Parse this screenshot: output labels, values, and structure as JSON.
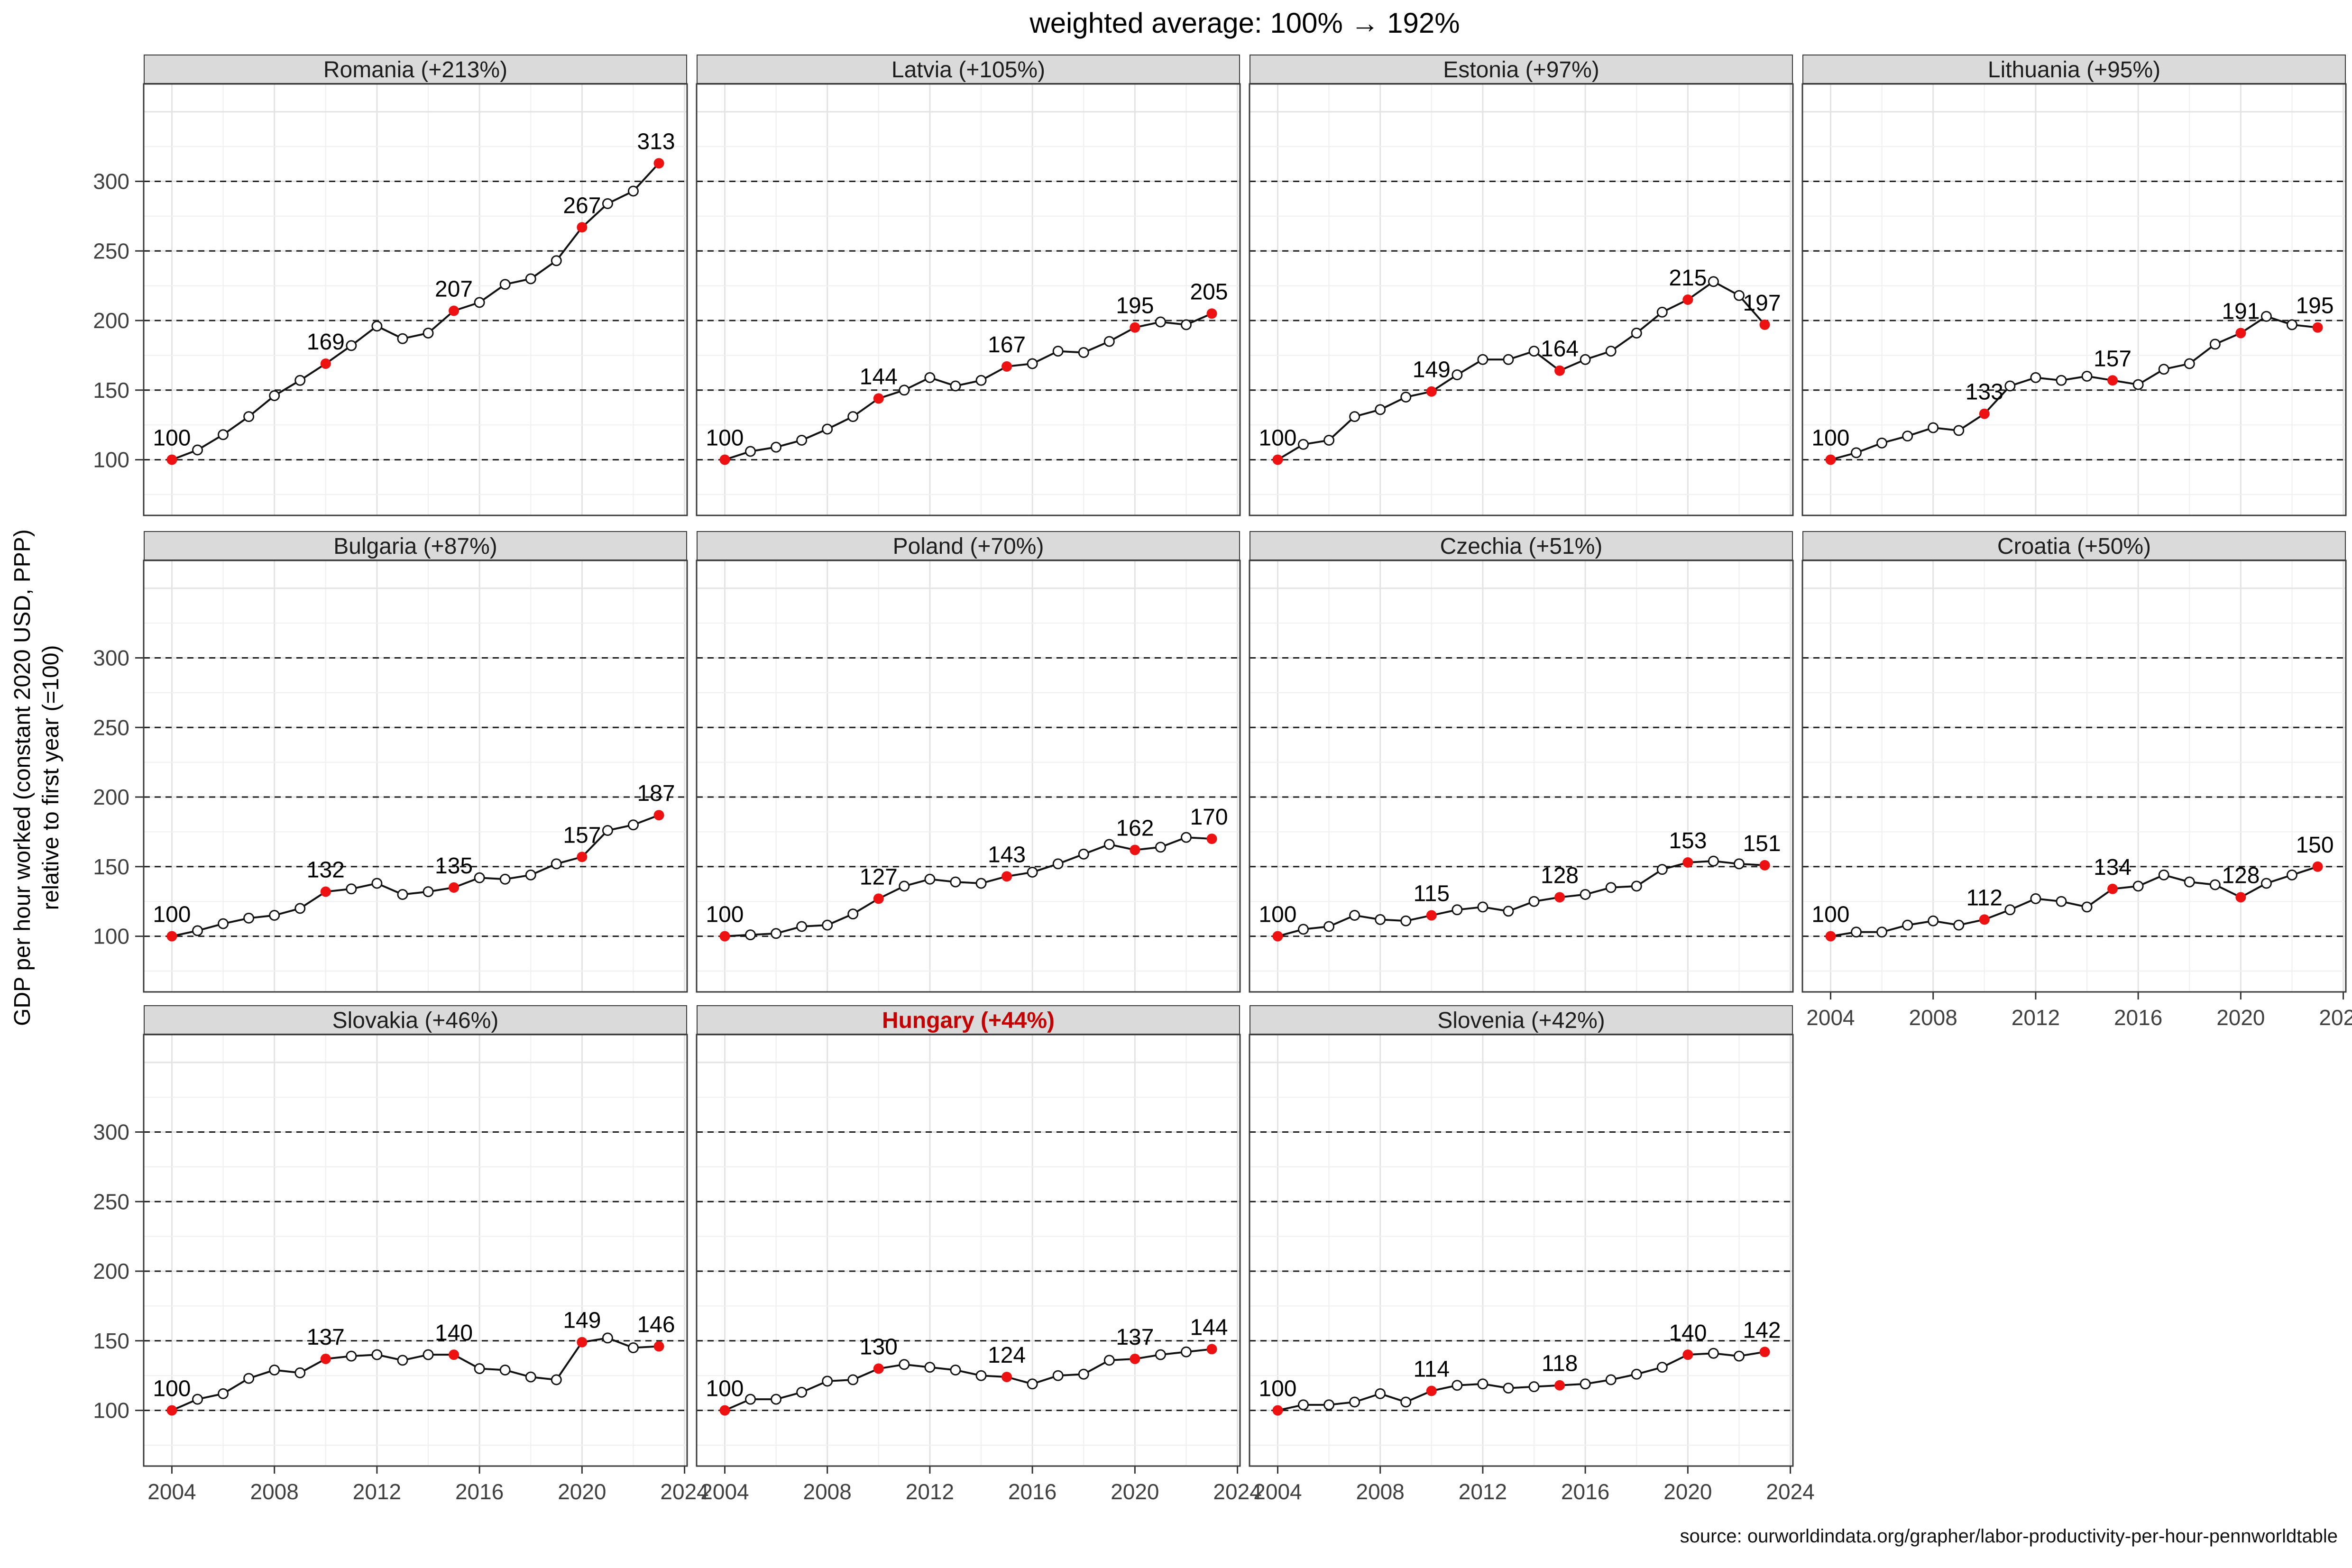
{
  "title": "weighted average: 100% → 192%",
  "y_axis": {
    "line1": "GDP per hour worked (constant 2020 USD, PPP)",
    "line2": "relative to first year (=100)"
  },
  "source": "source: ourworldindata.org/grapher/labor-productivity-per-hour-pennworldtable",
  "colors": {
    "highlight_red": "#ee1111",
    "hungary_title_red": "#c40000",
    "strip_bg": "#dadada",
    "grid_major": "#e3e3e3",
    "grid_minor": "#f0f0f0",
    "dash_line": "#1a1a1a",
    "data_line": "#111111",
    "border": "#3a3a3a",
    "tick_text": "#404040"
  },
  "chart_data": {
    "type": "line",
    "title": "weighted average: 100% → 192%",
    "ylabel": "GDP per hour worked (constant 2020 USD, PPP) relative to first year (=100)",
    "x": [
      2004,
      2005,
      2006,
      2007,
      2008,
      2009,
      2010,
      2011,
      2012,
      2013,
      2014,
      2015,
      2016,
      2017,
      2018,
      2019,
      2020,
      2021,
      2022,
      2023
    ],
    "x_ticks": [
      2004,
      2008,
      2012,
      2016,
      2020,
      2024
    ],
    "y_ticks": [
      100,
      150,
      200,
      250,
      300
    ],
    "dashed_gridlines": [
      100,
      150,
      200,
      250,
      300
    ],
    "label_years": [
      2004,
      2010,
      2015,
      2020,
      2023
    ],
    "ylim": [
      60,
      370
    ],
    "xlim": [
      2002.9,
      2024.1
    ],
    "facets": [
      {
        "label": "Romania (+213%)",
        "country": "Romania",
        "change_pct": "+213%",
        "highlight": false,
        "values": [
          100,
          107,
          118,
          131,
          146,
          157,
          169,
          182,
          196,
          187,
          191,
          207,
          213,
          226,
          230,
          243,
          267,
          284,
          293,
          313
        ],
        "labeled_values": [
          100,
          169,
          207,
          267,
          313
        ]
      },
      {
        "label": "Latvia (+105%)",
        "country": "Latvia",
        "change_pct": "+105%",
        "highlight": false,
        "values": [
          100,
          106,
          109,
          114,
          122,
          131,
          144,
          150,
          159,
          153,
          157,
          167,
          169,
          178,
          177,
          185,
          195,
          199,
          197,
          205
        ],
        "labeled_values": [
          100,
          144,
          167,
          195,
          205
        ]
      },
      {
        "label": "Estonia (+97%)",
        "country": "Estonia",
        "change_pct": "+97%",
        "highlight": false,
        "values": [
          100,
          111,
          114,
          131,
          136,
          145,
          149,
          161,
          172,
          172,
          178,
          164,
          172,
          178,
          191,
          206,
          215,
          228,
          218,
          197
        ],
        "labeled_values": [
          100,
          149,
          164,
          215,
          197
        ]
      },
      {
        "label": "Lithuania (+95%)",
        "country": "Lithuania",
        "change_pct": "+95%",
        "highlight": false,
        "values": [
          100,
          105,
          112,
          117,
          123,
          121,
          133,
          153,
          159,
          157,
          160,
          157,
          154,
          165,
          169,
          183,
          191,
          203,
          197,
          195
        ],
        "labeled_values": [
          100,
          133,
          157,
          191,
          195
        ]
      },
      {
        "label": "Bulgaria (+87%)",
        "country": "Bulgaria",
        "change_pct": "+87%",
        "highlight": false,
        "values": [
          100,
          104,
          109,
          113,
          115,
          120,
          132,
          134,
          138,
          130,
          132,
          135,
          142,
          141,
          144,
          152,
          157,
          176,
          180,
          187
        ],
        "labeled_values": [
          100,
          132,
          135,
          157,
          187
        ]
      },
      {
        "label": "Poland (+70%)",
        "country": "Poland",
        "change_pct": "+70%",
        "highlight": false,
        "values": [
          100,
          101,
          102,
          107,
          108,
          116,
          127,
          136,
          141,
          139,
          138,
          143,
          146,
          152,
          159,
          166,
          162,
          164,
          171,
          170
        ],
        "labeled_values": [
          100,
          127,
          143,
          162,
          170
        ]
      },
      {
        "label": "Czechia (+51%)",
        "country": "Czechia",
        "change_pct": "+51%",
        "highlight": false,
        "values": [
          100,
          105,
          107,
          115,
          112,
          111,
          115,
          119,
          121,
          118,
          125,
          128,
          130,
          135,
          136,
          148,
          153,
          154,
          152,
          151
        ],
        "labeled_values": [
          100,
          115,
          128,
          153,
          151
        ]
      },
      {
        "label": "Croatia (+50%)",
        "country": "Croatia",
        "change_pct": "+50%",
        "highlight": false,
        "values": [
          100,
          103,
          103,
          108,
          111,
          108,
          112,
          119,
          127,
          125,
          121,
          134,
          136,
          144,
          139,
          137,
          128,
          138,
          144,
          150
        ],
        "labeled_values": [
          100,
          112,
          134,
          128,
          150
        ]
      },
      {
        "label": "Slovakia (+46%)",
        "country": "Slovakia",
        "change_pct": "+46%",
        "highlight": false,
        "values": [
          100,
          108,
          112,
          123,
          129,
          127,
          137,
          139,
          140,
          136,
          140,
          140,
          130,
          129,
          124,
          122,
          149,
          152,
          145,
          146
        ],
        "labeled_values": [
          100,
          137,
          140,
          149,
          146
        ]
      },
      {
        "label": "Hungary (+44%)",
        "country": "Hungary",
        "change_pct": "+44%",
        "highlight": true,
        "values": [
          100,
          108,
          108,
          113,
          121,
          122,
          130,
          133,
          131,
          129,
          125,
          124,
          119,
          125,
          126,
          136,
          137,
          140,
          142,
          144
        ],
        "labeled_values": [
          100,
          130,
          124,
          137,
          144
        ]
      },
      {
        "label": "Slovenia (+42%)",
        "country": "Slovenia",
        "change_pct": "+42%",
        "highlight": false,
        "values": [
          100,
          104,
          104,
          106,
          112,
          106,
          114,
          118,
          119,
          116,
          117,
          118,
          119,
          122,
          126,
          131,
          140,
          141,
          139,
          142
        ],
        "labeled_values": [
          100,
          114,
          118,
          140,
          142
        ]
      }
    ]
  }
}
